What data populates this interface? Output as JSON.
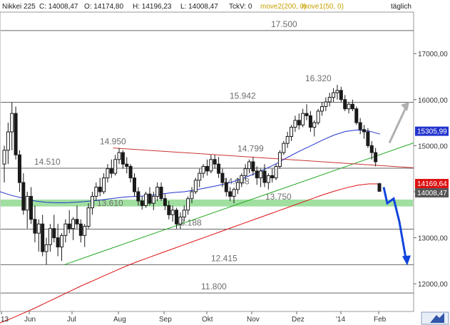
{
  "header": {
    "symbol": "Nikkei 225",
    "close_label": "C: 14008,47",
    "open_label": "O: 14174,80",
    "high_label": "H: 14196,23",
    "low_label": "L: 14008,47",
    "tckv_label": "TckV: 0",
    "move2_label": "move2(200, 0)",
    "move1_label": "move1(50, 0)",
    "period": "täglich"
  },
  "colors": {
    "candles": "#1a1a1a",
    "ma200": "#dd1111",
    "ma50": "#2233cc",
    "trendline_up": "#22aa22",
    "trendline_down": "#cc3333",
    "support_zone": "#8fd98f",
    "level_lines": "#666666",
    "arrow_up": "#b0b0b0",
    "arrow_down": "#1144dd",
    "move1_header": "#c8a000",
    "move2_header": "#c8a000"
  },
  "chart_data": {
    "type": "candlestick",
    "title": "Nikkei 225",
    "period": "täglich",
    "x_ticks": [
      "13",
      "Jun",
      "Jul",
      "Aug",
      "Sep",
      "Okt",
      "Nov",
      "Dez",
      "'14",
      "Feb"
    ],
    "y_ticks": [
      "17000,00",
      "16000,00",
      "15000,00",
      "14000,00",
      "13000,00",
      "12000,00"
    ],
    "ylim": [
      11400,
      17900
    ],
    "price_badges": [
      {
        "label": "15305,99",
        "value": 15305.99,
        "color": "#2233cc",
        "text_color": "#ffffff"
      },
      {
        "label": "14169,64",
        "value": 14169.64,
        "color": "#dd1111",
        "text_color": "#ffffff"
      },
      {
        "label": "14008,47",
        "value": 14008.47,
        "color": "#555555",
        "text_color": "#ffffff"
      }
    ],
    "levels": [
      {
        "label": "17.500",
        "value": 17500
      },
      {
        "label": "16.320",
        "value": 16320,
        "line": false
      },
      {
        "label": "15.942",
        "value": 15942
      },
      {
        "label": "14.950",
        "value": 14950,
        "line": false
      },
      {
        "label": "14.799",
        "value": 14799,
        "line": false
      },
      {
        "label": "14.510",
        "value": 14510
      },
      {
        "label": "14.088",
        "value": 14088,
        "line": false
      },
      {
        "label": "13.750",
        "value": 13750,
        "line": false
      },
      {
        "label": "13.610",
        "value": 13610,
        "line": false
      },
      {
        "label": "13.188",
        "value": 13188
      },
      {
        "label": "12.415",
        "value": 12415
      },
      {
        "label": "11.800",
        "value": 11800
      }
    ],
    "support_zone": [
      13680,
      13830
    ],
    "ohlc": [
      {
        "o": 14600,
        "h": 15000,
        "l": 14200,
        "c": 14900
      },
      {
        "o": 14900,
        "h": 15500,
        "l": 14600,
        "c": 15300
      },
      {
        "o": 15300,
        "h": 15942,
        "l": 14900,
        "c": 15700
      },
      {
        "o": 15700,
        "h": 15850,
        "l": 14700,
        "c": 14800
      },
      {
        "o": 14800,
        "h": 14900,
        "l": 14000,
        "c": 14200
      },
      {
        "o": 14200,
        "h": 14400,
        "l": 13500,
        "c": 13600
      },
      {
        "o": 13600,
        "h": 14000,
        "l": 13200,
        "c": 13900
      },
      {
        "o": 13900,
        "h": 14100,
        "l": 13300,
        "c": 13400
      },
      {
        "o": 13400,
        "h": 13700,
        "l": 12900,
        "c": 13100
      },
      {
        "o": 13100,
        "h": 13400,
        "l": 12700,
        "c": 13300
      },
      {
        "o": 13300,
        "h": 13500,
        "l": 12600,
        "c": 12700
      },
      {
        "o": 12700,
        "h": 13000,
        "l": 12415,
        "c": 12850
      },
      {
        "o": 12850,
        "h": 13300,
        "l": 12700,
        "c": 13200
      },
      {
        "o": 13200,
        "h": 13500,
        "l": 12900,
        "c": 13000
      },
      {
        "o": 13000,
        "h": 13300,
        "l": 12600,
        "c": 12800
      },
      {
        "o": 12800,
        "h": 13100,
        "l": 12500,
        "c": 13050
      },
      {
        "o": 13050,
        "h": 13400,
        "l": 12900,
        "c": 13300
      },
      {
        "o": 13300,
        "h": 13600,
        "l": 13100,
        "c": 13200
      },
      {
        "o": 13200,
        "h": 13450,
        "l": 12950,
        "c": 13400
      },
      {
        "o": 13400,
        "h": 13700,
        "l": 13200,
        "c": 13300
      },
      {
        "o": 13300,
        "h": 13400,
        "l": 12900,
        "c": 13050
      },
      {
        "o": 13050,
        "h": 13300,
        "l": 12800,
        "c": 13250
      },
      {
        "o": 13250,
        "h": 13750,
        "l": 13200,
        "c": 13650
      },
      {
        "o": 13650,
        "h": 14000,
        "l": 13500,
        "c": 13900
      },
      {
        "o": 13900,
        "h": 14200,
        "l": 13800,
        "c": 14100
      },
      {
        "o": 14100,
        "h": 14300,
        "l": 13900,
        "c": 14000
      },
      {
        "o": 14000,
        "h": 14400,
        "l": 13950,
        "c": 14300
      },
      {
        "o": 14300,
        "h": 14600,
        "l": 14200,
        "c": 14500
      },
      {
        "o": 14500,
        "h": 14700,
        "l": 14300,
        "c": 14400
      },
      {
        "o": 14400,
        "h": 14800,
        "l": 14350,
        "c": 14700
      },
      {
        "o": 14700,
        "h": 14950,
        "l": 14600,
        "c": 14850
      },
      {
        "o": 14850,
        "h": 14900,
        "l": 14500,
        "c": 14600
      },
      {
        "o": 14600,
        "h": 14750,
        "l": 14400,
        "c": 14550
      },
      {
        "o": 14550,
        "h": 14600,
        "l": 14200,
        "c": 14300
      },
      {
        "o": 14300,
        "h": 14400,
        "l": 13900,
        "c": 14000
      },
      {
        "o": 14000,
        "h": 14100,
        "l": 13700,
        "c": 13800
      },
      {
        "o": 13800,
        "h": 13900,
        "l": 13610,
        "c": 13700
      },
      {
        "o": 13700,
        "h": 14000,
        "l": 13650,
        "c": 13950
      },
      {
        "o": 13950,
        "h": 14100,
        "l": 13700,
        "c": 13750
      },
      {
        "o": 13750,
        "h": 14000,
        "l": 13600,
        "c": 13900
      },
      {
        "o": 13900,
        "h": 14200,
        "l": 13800,
        "c": 14100
      },
      {
        "o": 14100,
        "h": 14200,
        "l": 13800,
        "c": 13850
      },
      {
        "o": 13850,
        "h": 13950,
        "l": 13600,
        "c": 13700
      },
      {
        "o": 13700,
        "h": 13800,
        "l": 13400,
        "c": 13500
      },
      {
        "o": 13500,
        "h": 13700,
        "l": 13350,
        "c": 13600
      },
      {
        "o": 13600,
        "h": 13650,
        "l": 13200,
        "c": 13300
      },
      {
        "o": 13300,
        "h": 13550,
        "l": 13188,
        "c": 13450
      },
      {
        "o": 13450,
        "h": 13700,
        "l": 13350,
        "c": 13600
      },
      {
        "o": 13600,
        "h": 13900,
        "l": 13500,
        "c": 13850
      },
      {
        "o": 13850,
        "h": 14100,
        "l": 13750,
        "c": 14000
      },
      {
        "o": 14000,
        "h": 14300,
        "l": 13950,
        "c": 14250
      },
      {
        "o": 14250,
        "h": 14500,
        "l": 14100,
        "c": 14400
      },
      {
        "o": 14400,
        "h": 14600,
        "l": 14300,
        "c": 14550
      },
      {
        "o": 14550,
        "h": 14700,
        "l": 14350,
        "c": 14450
      },
      {
        "o": 14450,
        "h": 14800,
        "l": 14400,
        "c": 14700
      },
      {
        "o": 14700,
        "h": 14799,
        "l": 14500,
        "c": 14600
      },
      {
        "o": 14600,
        "h": 14750,
        "l": 14300,
        "c": 14400
      },
      {
        "o": 14400,
        "h": 14500,
        "l": 14100,
        "c": 14200
      },
      {
        "o": 14200,
        "h": 14300,
        "l": 13900,
        "c": 14000
      },
      {
        "o": 14000,
        "h": 14100,
        "l": 13800,
        "c": 13900
      },
      {
        "o": 13900,
        "h": 14088,
        "l": 13750,
        "c": 14050
      },
      {
        "o": 14050,
        "h": 14300,
        "l": 13950,
        "c": 14200
      },
      {
        "o": 14200,
        "h": 14400,
        "l": 14100,
        "c": 14350
      },
      {
        "o": 14350,
        "h": 14600,
        "l": 14250,
        "c": 14500
      },
      {
        "o": 14500,
        "h": 14700,
        "l": 14400,
        "c": 14650
      },
      {
        "o": 14650,
        "h": 14750,
        "l": 14350,
        "c": 14450
      },
      {
        "o": 14450,
        "h": 14550,
        "l": 14150,
        "c": 14300
      },
      {
        "o": 14300,
        "h": 14500,
        "l": 14100,
        "c": 14450
      },
      {
        "o": 14450,
        "h": 14600,
        "l": 14100,
        "c": 14200
      },
      {
        "o": 14200,
        "h": 14400,
        "l": 14050,
        "c": 14350
      },
      {
        "o": 14350,
        "h": 14500,
        "l": 14200,
        "c": 14300
      },
      {
        "o": 14300,
        "h": 14600,
        "l": 14250,
        "c": 14550
      },
      {
        "o": 14550,
        "h": 14900,
        "l": 14500,
        "c": 14850
      },
      {
        "o": 14850,
        "h": 15100,
        "l": 14800,
        "c": 15050
      },
      {
        "o": 15050,
        "h": 15300,
        "l": 14950,
        "c": 15200
      },
      {
        "o": 15200,
        "h": 15450,
        "l": 15100,
        "c": 15400
      },
      {
        "o": 15400,
        "h": 15650,
        "l": 15300,
        "c": 15550
      },
      {
        "o": 15550,
        "h": 15700,
        "l": 15350,
        "c": 15450
      },
      {
        "o": 15450,
        "h": 15800,
        "l": 15400,
        "c": 15700
      },
      {
        "o": 15700,
        "h": 15900,
        "l": 15550,
        "c": 15650
      },
      {
        "o": 15650,
        "h": 15750,
        "l": 15300,
        "c": 15400
      },
      {
        "o": 15400,
        "h": 15550,
        "l": 15200,
        "c": 15500
      },
      {
        "o": 15500,
        "h": 15800,
        "l": 15450,
        "c": 15750
      },
      {
        "o": 15750,
        "h": 15950,
        "l": 15650,
        "c": 15850
      },
      {
        "o": 15850,
        "h": 16050,
        "l": 15750,
        "c": 15950
      },
      {
        "o": 15950,
        "h": 16150,
        "l": 15850,
        "c": 16050
      },
      {
        "o": 16050,
        "h": 16250,
        "l": 15950,
        "c": 16150
      },
      {
        "o": 16150,
        "h": 16320,
        "l": 16000,
        "c": 16200
      },
      {
        "o": 16200,
        "h": 16280,
        "l": 15950,
        "c": 16000
      },
      {
        "o": 16000,
        "h": 16100,
        "l": 15750,
        "c": 15800
      },
      {
        "o": 15800,
        "h": 15950,
        "l": 15700,
        "c": 15900
      },
      {
        "o": 15900,
        "h": 16000,
        "l": 15750,
        "c": 15800
      },
      {
        "o": 15800,
        "h": 15850,
        "l": 15450,
        "c": 15500
      },
      {
        "o": 15500,
        "h": 15600,
        "l": 15250,
        "c": 15350
      },
      {
        "o": 15350,
        "h": 15450,
        "l": 15150,
        "c": 15300
      },
      {
        "o": 15300,
        "h": 15380,
        "l": 14950,
        "c": 15000
      },
      {
        "o": 15000,
        "h": 15100,
        "l": 14700,
        "c": 14850
      },
      {
        "o": 14850,
        "h": 14950,
        "l": 14550,
        "c": 14650
      },
      {
        "o": 14174.8,
        "h": 14196.23,
        "l": 14008.47,
        "c": 14008.47
      }
    ],
    "ma50": [
      14000,
      13920,
      13860,
      13800,
      13770,
      13760,
      13765,
      13780,
      13800,
      13830,
      13860,
      13890,
      13900,
      13920,
      13950,
      13980,
      14000,
      14040,
      14090,
      14140,
      14200,
      14280,
      14380,
      14490,
      14610,
      14750,
      14880,
      15000,
      15120,
      15230,
      15310,
      15340,
      15320,
      15250
    ],
    "ma200": [
      11150,
      11250,
      11360,
      11470,
      11590,
      11710,
      11830,
      11950,
      12060,
      12170,
      12280,
      12390,
      12490,
      12580,
      12670,
      12760,
      12850,
      12940,
      13030,
      13120,
      13210,
      13300,
      13390,
      13480,
      13570,
      13660,
      13750,
      13840,
      13930,
      14010,
      14080,
      14140,
      14170,
      14170
    ],
    "trendline_up": [
      [
        12415,
        0.16
      ],
      [
        15060,
        1.0
      ]
    ],
    "trendline_down": [
      [
        14950,
        0.29
      ],
      [
        14520,
        1.0
      ]
    ],
    "arrow_up_target": 15950,
    "arrow_down_path": [
      14100,
      13750,
      13850,
      13350,
      12400
    ]
  }
}
